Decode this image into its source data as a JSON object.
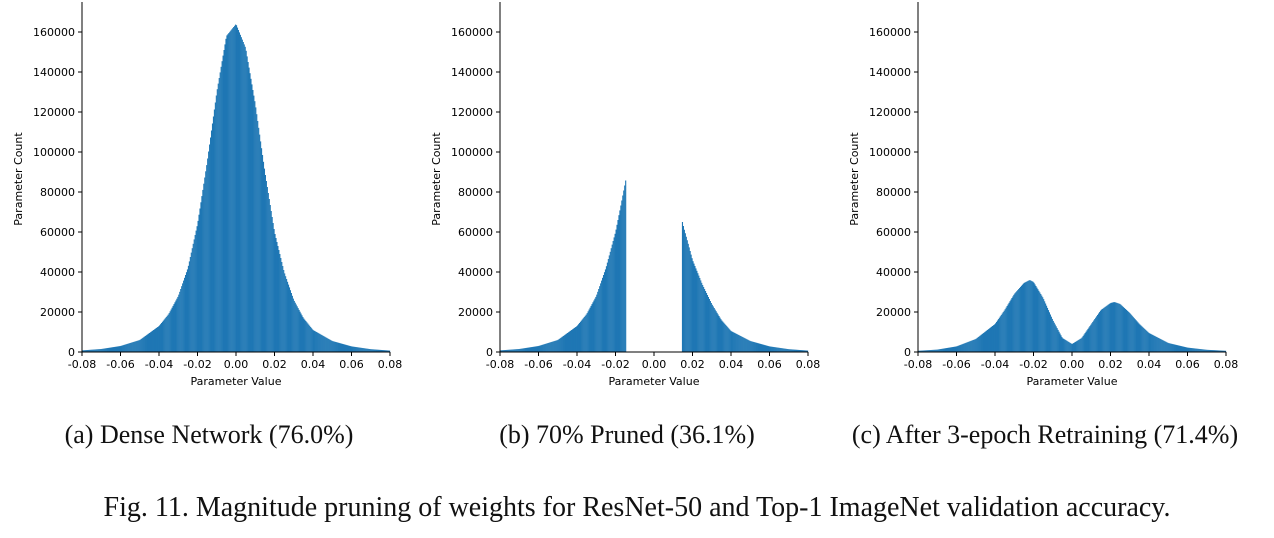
{
  "figure_caption": "Fig. 11.  Magnitude pruning of weights for ResNet-50 and Top-1 ImageNet validation accuracy.",
  "chart_data": [
    {
      "type": "histogram",
      "subcaption": "(a) Dense Network (76.0%)",
      "xlabel": "Parameter Value",
      "ylabel": "Parameter Count",
      "xlim": [
        -0.08,
        0.08
      ],
      "ylim": [
        0,
        175000
      ],
      "xticks": [
        "-0.08",
        "-0.06",
        "-0.04",
        "-0.02",
        "0.00",
        "0.02",
        "0.04",
        "0.06",
        "0.08"
      ],
      "yticks": [
        "0",
        "20000",
        "40000",
        "60000",
        "80000",
        "100000",
        "120000",
        "140000",
        "160000"
      ],
      "color": "#1f77b4",
      "x": [
        -0.08,
        -0.07,
        -0.06,
        -0.05,
        -0.04,
        -0.035,
        -0.03,
        -0.025,
        -0.02,
        -0.015,
        -0.01,
        -0.005,
        0.0,
        0.005,
        0.01,
        0.015,
        0.02,
        0.025,
        0.03,
        0.035,
        0.04,
        0.05,
        0.06,
        0.07,
        0.08
      ],
      "values": [
        800,
        1500,
        3000,
        6000,
        13000,
        19000,
        28000,
        42000,
        64000,
        95000,
        130000,
        158000,
        164000,
        152000,
        124000,
        90000,
        60000,
        40000,
        26000,
        17000,
        11000,
        5500,
        2800,
        1400,
        700
      ]
    },
    {
      "type": "histogram",
      "subcaption": "(b) 70% Pruned (36.1%)",
      "xlabel": "Parameter Value",
      "ylabel": "Parameter Count",
      "xlim": [
        -0.08,
        0.08
      ],
      "ylim": [
        0,
        175000
      ],
      "xticks": [
        "-0.08",
        "-0.06",
        "-0.04",
        "-0.02",
        "0.00",
        "0.02",
        "0.04",
        "0.06",
        "0.08"
      ],
      "yticks": [
        "0",
        "20000",
        "40000",
        "60000",
        "80000",
        "100000",
        "120000",
        "140000",
        "160000"
      ],
      "color": "#1f77b4",
      "x": [
        -0.08,
        -0.07,
        -0.06,
        -0.05,
        -0.04,
        -0.035,
        -0.03,
        -0.025,
        -0.02,
        -0.0175,
        -0.0155,
        -0.0145,
        0.0145,
        0.0155,
        0.0175,
        0.02,
        0.025,
        0.03,
        0.035,
        0.04,
        0.05,
        0.06,
        0.07,
        0.08
      ],
      "values": [
        800,
        1500,
        3000,
        6000,
        13000,
        19000,
        28000,
        42000,
        60000,
        72000,
        82000,
        87000,
        66000,
        62000,
        55000,
        46000,
        34000,
        24000,
        16000,
        10500,
        5500,
        2800,
        1400,
        700
      ]
    },
    {
      "type": "histogram",
      "subcaption": "(c) After 3-epoch Retraining (71.4%)",
      "xlabel": "Parameter Value",
      "ylabel": "Parameter Count",
      "xlim": [
        -0.08,
        0.08
      ],
      "ylim": [
        0,
        175000
      ],
      "xticks": [
        "-0.08",
        "-0.06",
        "-0.04",
        "-0.02",
        "0.00",
        "0.02",
        "0.04",
        "0.06",
        "0.08"
      ],
      "yticks": [
        "0",
        "20000",
        "40000",
        "60000",
        "80000",
        "100000",
        "120000",
        "140000",
        "160000"
      ],
      "color": "#1f77b4",
      "x": [
        -0.08,
        -0.07,
        -0.06,
        -0.05,
        -0.04,
        -0.035,
        -0.03,
        -0.025,
        -0.022,
        -0.02,
        -0.015,
        -0.01,
        -0.005,
        0.0,
        0.005,
        0.01,
        0.015,
        0.02,
        0.022,
        0.025,
        0.03,
        0.035,
        0.04,
        0.05,
        0.06,
        0.07,
        0.08
      ],
      "values": [
        600,
        1200,
        2800,
        6500,
        14000,
        21000,
        29000,
        34500,
        36000,
        35000,
        27000,
        16000,
        7000,
        4000,
        7000,
        14000,
        21000,
        24500,
        25000,
        24000,
        19500,
        14000,
        9500,
        4500,
        2200,
        1100,
        600
      ]
    }
  ]
}
